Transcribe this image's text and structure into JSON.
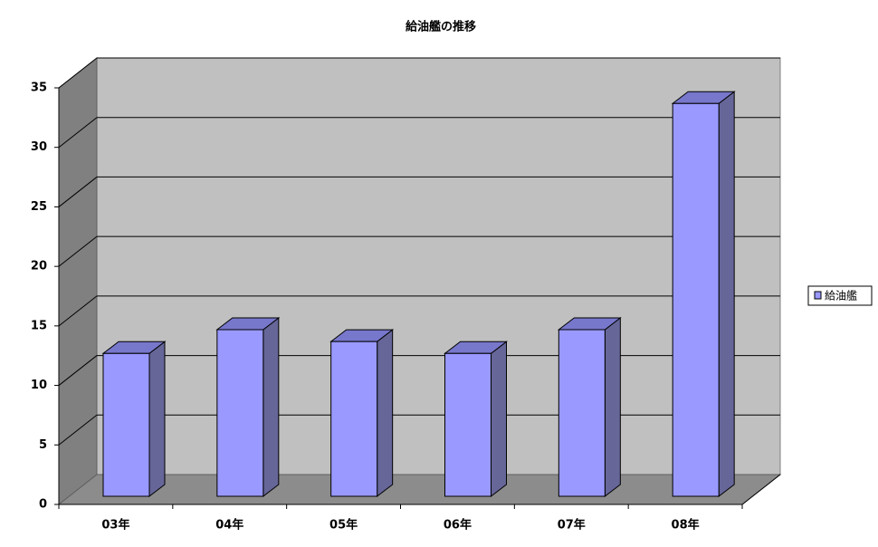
{
  "chart_data": {
    "type": "bar",
    "title": "給油艦の推移",
    "categories": [
      "03年",
      "04年",
      "05年",
      "06年",
      "07年",
      "08年"
    ],
    "series": [
      {
        "name": "給油艦",
        "color": "#9999ff",
        "values": [
          12,
          14,
          13,
          12,
          14,
          33
        ]
      }
    ],
    "ylim": [
      0,
      35
    ],
    "yticks": [
      0,
      5,
      10,
      15,
      20,
      25,
      30,
      35
    ],
    "grid": true,
    "legend": "right"
  }
}
